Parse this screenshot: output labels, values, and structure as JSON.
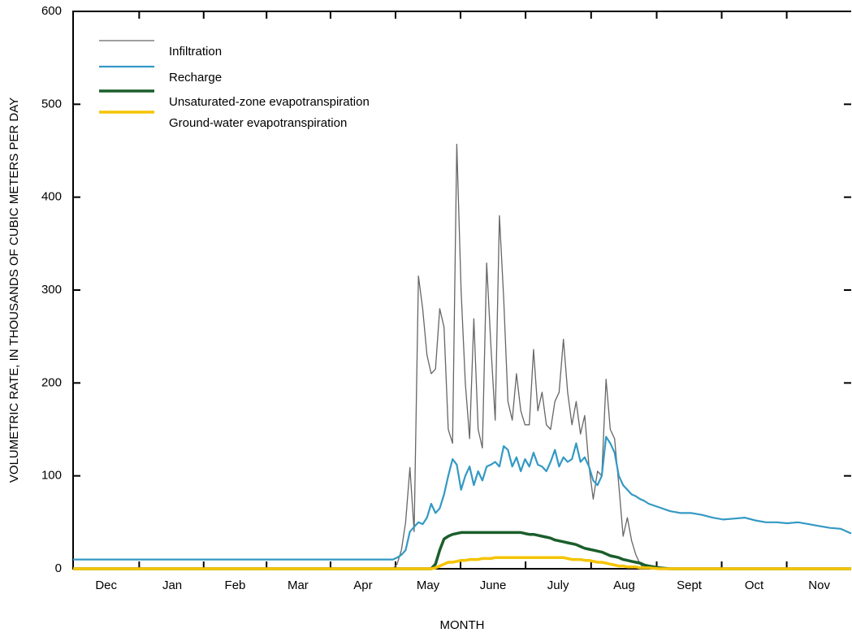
{
  "chart_data": {
    "type": "line",
    "xlabel": "MONTH",
    "ylabel": "VOLUMETRIC RATE, IN THOUSANDS OF CUBIC METERS PER DAY",
    "x": [
      0,
      30,
      60,
      90,
      120,
      146,
      148,
      150,
      152,
      154,
      156,
      158,
      160,
      162,
      164,
      166,
      168,
      170,
      172,
      174,
      176,
      178,
      180,
      182,
      184,
      186,
      188,
      190,
      192,
      194,
      196,
      198,
      200,
      202,
      204,
      206,
      208,
      210,
      212,
      214,
      216,
      218,
      220,
      222,
      224,
      226,
      228,
      230,
      232,
      234,
      236,
      238,
      240,
      242,
      244,
      246,
      248,
      250,
      252,
      254,
      256,
      258,
      260,
      262,
      264,
      266,
      268,
      270,
      275,
      280,
      285,
      290,
      295,
      300,
      305,
      310,
      315,
      320,
      325,
      330,
      335,
      340,
      345,
      350,
      355,
      360,
      365
    ],
    "xlim": [
      0,
      365
    ],
    "xticks": [
      {
        "value": 15.5,
        "label": "Dec"
      },
      {
        "value": 46.5,
        "label": "Jan"
      },
      {
        "value": 76,
        "label": "Feb"
      },
      {
        "value": 105.5,
        "label": "Mar"
      },
      {
        "value": 136,
        "label": "Apr"
      },
      {
        "value": 166.5,
        "label": "May"
      },
      {
        "value": 197,
        "label": "June"
      },
      {
        "value": 227.5,
        "label": "July"
      },
      {
        "value": 258.5,
        "label": "Aug"
      },
      {
        "value": 289,
        "label": "Sept"
      },
      {
        "value": 319.5,
        "label": "Oct"
      },
      {
        "value": 350,
        "label": "Nov"
      }
    ],
    "ylim": [
      0,
      600
    ],
    "yticks": [
      0,
      100,
      200,
      300,
      400,
      500,
      600
    ],
    "legend": "upper left",
    "series": [
      {
        "name": "Infiltration",
        "color": "#666666",
        "width": 1.3,
        "values": [
          0,
          0,
          0,
          0,
          0,
          0,
          0,
          0,
          5,
          20,
          50,
          109,
          40,
          315,
          280,
          230,
          210,
          215,
          280,
          260,
          150,
          135,
          457,
          300,
          200,
          140,
          269,
          150,
          130,
          329,
          240,
          160,
          380,
          290,
          180,
          160,
          210,
          170,
          155,
          155,
          236,
          170,
          190,
          155,
          150,
          180,
          190,
          247,
          190,
          155,
          180,
          145,
          165,
          110,
          75,
          105,
          100,
          204,
          150,
          140,
          90,
          35,
          55,
          30,
          15,
          5,
          0,
          0,
          0,
          0,
          0,
          0,
          0,
          0,
          0,
          0,
          0,
          0,
          0,
          0,
          0,
          0,
          0,
          0,
          0,
          0,
          0
        ]
      },
      {
        "name": "Recharge",
        "color": "#3399c4",
        "width": 2.2,
        "values": [
          10,
          10,
          10,
          10,
          10,
          10,
          10,
          10,
          12,
          15,
          20,
          40,
          45,
          50,
          48,
          55,
          70,
          60,
          65,
          80,
          100,
          118,
          112,
          85,
          100,
          110,
          90,
          105,
          95,
          110,
          112,
          115,
          110,
          132,
          128,
          110,
          120,
          105,
          118,
          110,
          125,
          112,
          110,
          105,
          115,
          128,
          110,
          120,
          115,
          118,
          135,
          115,
          120,
          110,
          95,
          90,
          100,
          142,
          135,
          125,
          100,
          90,
          85,
          80,
          78,
          75,
          73,
          70,
          66,
          62,
          60,
          60,
          58,
          55,
          53,
          54,
          55,
          52,
          50,
          50,
          49,
          50,
          48,
          46,
          44,
          43,
          38
        ]
      },
      {
        "name": "Unsaturated-zone evapotranspiration",
        "color": "#1b5e2b",
        "width": 3.5,
        "values": [
          0,
          0,
          0,
          0,
          0,
          0,
          0,
          0,
          0,
          0,
          0,
          0,
          0,
          0,
          0,
          0,
          0,
          5,
          20,
          32,
          35,
          37,
          38,
          39,
          39,
          39,
          39,
          39,
          39,
          39,
          39,
          39,
          39,
          39,
          39,
          39,
          39,
          39,
          38,
          37,
          37,
          36,
          35,
          34,
          33,
          31,
          30,
          29,
          28,
          27,
          26,
          24,
          22,
          21,
          20,
          19,
          18,
          16,
          14,
          13,
          12,
          10,
          9,
          8,
          7,
          6,
          4,
          3,
          1,
          0,
          0,
          0,
          0,
          0,
          0,
          0,
          0,
          0,
          0,
          0,
          0,
          0,
          0,
          0,
          0,
          0,
          0
        ]
      },
      {
        "name": "Ground-water evapotranspiration",
        "color": "#f5c400",
        "width": 3.5,
        "values": [
          0,
          0,
          0,
          0,
          0,
          0,
          0,
          0,
          0,
          0,
          0,
          0,
          0,
          0,
          0,
          0,
          0,
          1,
          3,
          5,
          7,
          7,
          8,
          9,
          9,
          10,
          10,
          10,
          11,
          11,
          11,
          12,
          12,
          12,
          12,
          12,
          12,
          12,
          12,
          12,
          12,
          12,
          12,
          12,
          12,
          12,
          12,
          12,
          11,
          10,
          10,
          10,
          9,
          9,
          8,
          7,
          7,
          6,
          5,
          4,
          3,
          3,
          2,
          2,
          2,
          1,
          1,
          1,
          0,
          0,
          0,
          0,
          0,
          0,
          0,
          0,
          0,
          0,
          0,
          0,
          0,
          0,
          0,
          0,
          0,
          0,
          0
        ]
      }
    ]
  }
}
